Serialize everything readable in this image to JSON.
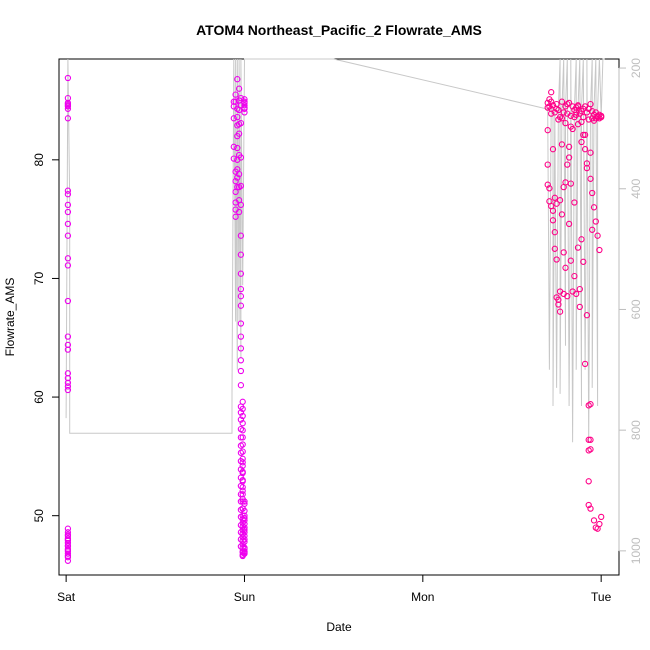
{
  "chart_data": {
    "type": "scatter",
    "title": "ATOM4 Northeast_Pacific_2 Flowrate_AMS",
    "xlabel": "Date",
    "ylabel": "Flowrate_AMS",
    "x_ticks": [
      "Sat",
      "Sun",
      "Mon",
      "Tue"
    ],
    "x_tick_values": [
      0,
      1,
      2,
      3
    ],
    "xlim": [
      -0.04,
      3.1
    ],
    "ylim": [
      45,
      88.5
    ],
    "y_ticks": [
      50,
      60,
      70,
      80
    ],
    "y2_ticks": [
      200,
      400,
      600,
      800,
      1000
    ],
    "y2lim": [
      1040,
      185
    ],
    "y2_reversed": true,
    "grid": false,
    "colors": {
      "points_early": "#ee00ee",
      "points_late": "#ff0088",
      "secondary_line": "#c8c8c8"
    },
    "series": [
      {
        "marker": "open-circle",
        "color": "#ee00ee",
        "x": [
          0.01,
          0.01,
          0.01,
          0.01,
          0.01,
          0.01,
          0.01,
          0.01,
          0.01,
          0.01,
          0.01,
          0.01,
          0.01,
          0.01,
          0.01,
          0.01,
          0.01,
          0.01,
          0.01,
          0.01,
          0.01,
          0.01,
          0.01,
          0.01,
          0.01,
          0.01,
          0.01,
          0.01,
          0.01,
          0.01,
          0.01,
          0.01,
          0.01,
          0.01,
          0.01,
          0.01,
          0.01,
          0.01,
          0.01,
          0.01,
          0.01,
          0.01,
          0.94,
          0.94,
          0.94,
          0.94,
          0.94,
          0.95,
          0.95,
          0.95,
          0.95,
          0.95,
          0.95,
          0.95,
          0.95,
          0.96,
          0.96,
          0.96,
          0.96,
          0.96,
          0.96,
          0.96,
          0.96,
          0.96,
          0.96,
          0.97,
          0.97,
          0.97,
          0.97,
          0.97,
          0.97,
          0.97,
          0.97,
          0.97,
          0.97,
          0.98,
          0.98,
          0.98,
          0.98,
          0.98,
          0.98,
          0.98,
          0.98,
          0.98,
          0.98,
          0.98,
          0.98,
          0.98,
          0.98,
          0.98,
          0.98,
          0.98,
          0.98,
          0.98,
          0.98,
          0.98,
          0.98,
          0.98,
          0.98,
          0.98,
          0.98,
          0.98,
          0.98,
          0.98,
          0.98,
          0.98,
          0.98,
          0.98,
          0.98,
          0.98,
          0.98,
          0.98,
          0.99,
          0.99,
          0.99,
          0.99,
          0.99,
          0.99,
          0.99,
          0.99,
          0.99,
          0.99,
          0.99,
          0.99,
          0.99,
          0.99,
          0.99,
          0.99,
          0.99,
          0.99,
          0.99,
          0.99,
          0.99,
          0.99,
          0.99,
          0.99,
          0.99,
          0.99,
          0.99,
          0.99,
          0.99,
          0.99,
          0.99,
          0.99,
          0.99,
          0.99,
          0.99,
          0.99,
          1.0,
          1.0,
          1.0,
          1.0,
          1.0,
          1.0,
          1.0,
          1.0,
          1.0,
          1.0,
          1.0,
          1.0,
          1.0,
          1.0,
          1.0,
          1.0,
          1.0,
          1.0,
          1.0,
          1.0,
          1.0,
          1.0,
          1.0,
          1.0,
          1.0
        ],
        "y": [
          86.9,
          85.2,
          84.8,
          84.6,
          84.3,
          84.5,
          84.7,
          83.5,
          77.4,
          77.1,
          76.2,
          75.6,
          74.6,
          73.6,
          71.7,
          71.1,
          68.1,
          65.1,
          64.4,
          64.0,
          62.0,
          61.6,
          61.2,
          60.9,
          60.6,
          48.9,
          48.6,
          48.3,
          48.0,
          47.7,
          47.4,
          47.1,
          46.8,
          46.5,
          46.2,
          47.9,
          48.4,
          47.0,
          46.6,
          48.1,
          47.5,
          47.2,
          84.9,
          84.5,
          83.5,
          81.1,
          80.1,
          79.0,
          78.2,
          77.3,
          76.4,
          75.8,
          75.2,
          85.5,
          84.9,
          84.3,
          83.6,
          82.9,
          82.0,
          81.0,
          80.0,
          79.2,
          78.5,
          77.7,
          86.8,
          85.0,
          84.2,
          83.0,
          82.2,
          80.4,
          78.8,
          77.7,
          76.6,
          75.6,
          86.0,
          85.2,
          84.6,
          83.1,
          80.2,
          77.8,
          76.2,
          73.6,
          72.0,
          70.4,
          69.1,
          68.5,
          67.7,
          66.2,
          65.1,
          64.1,
          63.1,
          62.2,
          61.0,
          59.2,
          58.7,
          58.1,
          57.3,
          56.6,
          55.9,
          55.3,
          54.6,
          53.9,
          53.2,
          52.5,
          51.8,
          51.2,
          50.5,
          49.9,
          49.2,
          48.6,
          48.0,
          47.4,
          59.6,
          59.0,
          58.4,
          57.8,
          57.2,
          56.6,
          56.0,
          55.4,
          54.8,
          54.2,
          53.6,
          53.0,
          52.4,
          51.8,
          51.2,
          50.6,
          50.0,
          49.4,
          48.8,
          48.2,
          47.6,
          47.0,
          46.7,
          50.6,
          51.4,
          52.1,
          52.9,
          53.7,
          54.5,
          49.7,
          49.1,
          48.5,
          47.9,
          47.3,
          46.9,
          46.6,
          84.8,
          84.6,
          84.4,
          84.9,
          85.1,
          84.3,
          84.0,
          49.8,
          49.3,
          48.8,
          48.3,
          47.8,
          47.3,
          46.8,
          47.0,
          48.0,
          49.0,
          50.0,
          51.0,
          46.9,
          47.2,
          48.6,
          49.6,
          50.4,
          51.2
        ]
      },
      {
        "marker": "open-circle",
        "color": "#ff0088",
        "x": [
          2.7,
          2.7,
          2.7,
          2.7,
          2.7,
          2.71,
          2.71,
          2.71,
          2.71,
          2.72,
          2.72,
          2.72,
          2.72,
          2.72,
          2.73,
          2.73,
          2.73,
          2.73,
          2.74,
          2.74,
          2.74,
          2.74,
          2.75,
          2.75,
          2.75,
          2.75,
          2.76,
          2.76,
          2.76,
          2.76,
          2.77,
          2.77,
          2.77,
          2.78,
          2.78,
          2.78,
          2.78,
          2.79,
          2.79,
          2.79,
          2.8,
          2.8,
          2.8,
          2.81,
          2.81,
          2.81,
          2.82,
          2.82,
          2.82,
          2.83,
          2.83,
          2.83,
          2.84,
          2.84,
          2.84,
          2.85,
          2.85,
          2.85,
          2.86,
          2.86,
          2.86,
          2.87,
          2.87,
          2.87,
          2.88,
          2.88,
          2.88,
          2.89,
          2.89,
          2.89,
          2.9,
          2.9,
          2.9,
          2.91,
          2.91,
          2.91,
          2.92,
          2.92,
          2.92,
          2.93,
          2.93,
          2.93,
          2.93,
          2.93,
          2.93,
          2.93,
          2.94,
          2.94,
          2.94,
          2.94,
          2.94,
          2.94,
          2.95,
          2.95,
          2.95,
          2.96,
          2.96,
          2.96,
          2.97,
          2.97,
          2.97,
          2.98,
          2.98,
          2.98,
          2.99,
          2.99,
          2.99,
          3.0,
          3.0,
          3.0,
          2.75,
          2.77,
          2.79,
          2.8,
          2.81,
          2.82,
          2.83,
          2.85,
          2.86,
          2.87,
          2.89,
          2.9,
          2.91,
          2.92,
          2.94,
          2.95,
          2.96,
          2.97,
          2.98,
          2.99
        ],
        "y": [
          84.8,
          84.4,
          82.5,
          79.6,
          77.9,
          85.1,
          84.5,
          77.6,
          76.5,
          85.7,
          84.3,
          76.1,
          84.9,
          83.9,
          75.7,
          74.9,
          80.9,
          84.6,
          84.0,
          76.8,
          73.9,
          72.5,
          84.3,
          71.6,
          68.4,
          84.7,
          83.4,
          67.8,
          68.2,
          84.2,
          83.6,
          68.9,
          67.2,
          84.9,
          83.5,
          81.3,
          75.4,
          84.0,
          72.2,
          68.7,
          84.5,
          83.1,
          70.9,
          84.7,
          83.9,
          68.5,
          84.8,
          80.2,
          74.6,
          83.7,
          78.0,
          71.5,
          84.5,
          82.6,
          68.9,
          84.2,
          76.4,
          70.2,
          84.4,
          83.8,
          68.7,
          84.6,
          83.0,
          72.6,
          83.9,
          69.1,
          67.6,
          84.1,
          81.5,
          73.3,
          84.3,
          83.6,
          71.4,
          84.5,
          82.1,
          62.8,
          84.0,
          79.3,
          66.9,
          84.3,
          83.4,
          59.3,
          56.4,
          55.5,
          52.9,
          50.9,
          84.7,
          80.6,
          59.4,
          56.4,
          55.6,
          50.6,
          84.1,
          83.5,
          74.1,
          83.8,
          83.3,
          49.6,
          84.0,
          83.5,
          49.0,
          83.6,
          83.7,
          48.9,
          83.8,
          83.5,
          49.3,
          83.6,
          83.7,
          49.9,
          76.3,
          76.6,
          77.7,
          78.1,
          79.6,
          81.1,
          82.8,
          83.6,
          84.0,
          84.5,
          83.2,
          82.1,
          80.9,
          79.7,
          78.4,
          77.2,
          76.0,
          74.8,
          73.6,
          72.4
        ]
      }
    ],
    "secondary_series": {
      "type": "line",
      "color": "#c8c8c8",
      "x": [
        0.0,
        0.01,
        0.01,
        0.02,
        0.02,
        0.02,
        0.93,
        0.93,
        0.94,
        0.95,
        0.95,
        0.96,
        0.96,
        0.97,
        0.97,
        0.98,
        0.98,
        0.99,
        1.0,
        1.0,
        1.5,
        2.7,
        2.71,
        2.72,
        2.73,
        2.73,
        2.74,
        2.75,
        2.76,
        2.77,
        2.77,
        2.78,
        2.79,
        2.8,
        2.8,
        2.81,
        2.82,
        2.83,
        2.83,
        2.84,
        2.85,
        2.86,
        2.86,
        2.87,
        2.88,
        2.89,
        2.89,
        2.9,
        2.91,
        2.92,
        2.92,
        2.93,
        2.94,
        2.95,
        2.95,
        2.96,
        2.97,
        2.98,
        2.98,
        2.99,
        3.0,
        3.01,
        3.02
      ],
      "y": [
        780,
        185,
        185,
        420,
        805,
        805,
        805,
        740,
        185,
        620,
        185,
        700,
        185,
        620,
        185,
        680,
        185,
        560,
        185,
        185,
        185,
        268,
        700,
        268,
        268,
        760,
        268,
        730,
        268,
        185,
        740,
        268,
        185,
        660,
        268,
        185,
        760,
        268,
        185,
        820,
        268,
        185,
        700,
        268,
        185,
        760,
        268,
        185,
        700,
        268,
        185,
        820,
        268,
        185,
        730,
        268,
        185,
        760,
        268,
        185,
        280,
        185,
        185
      ]
    }
  }
}
